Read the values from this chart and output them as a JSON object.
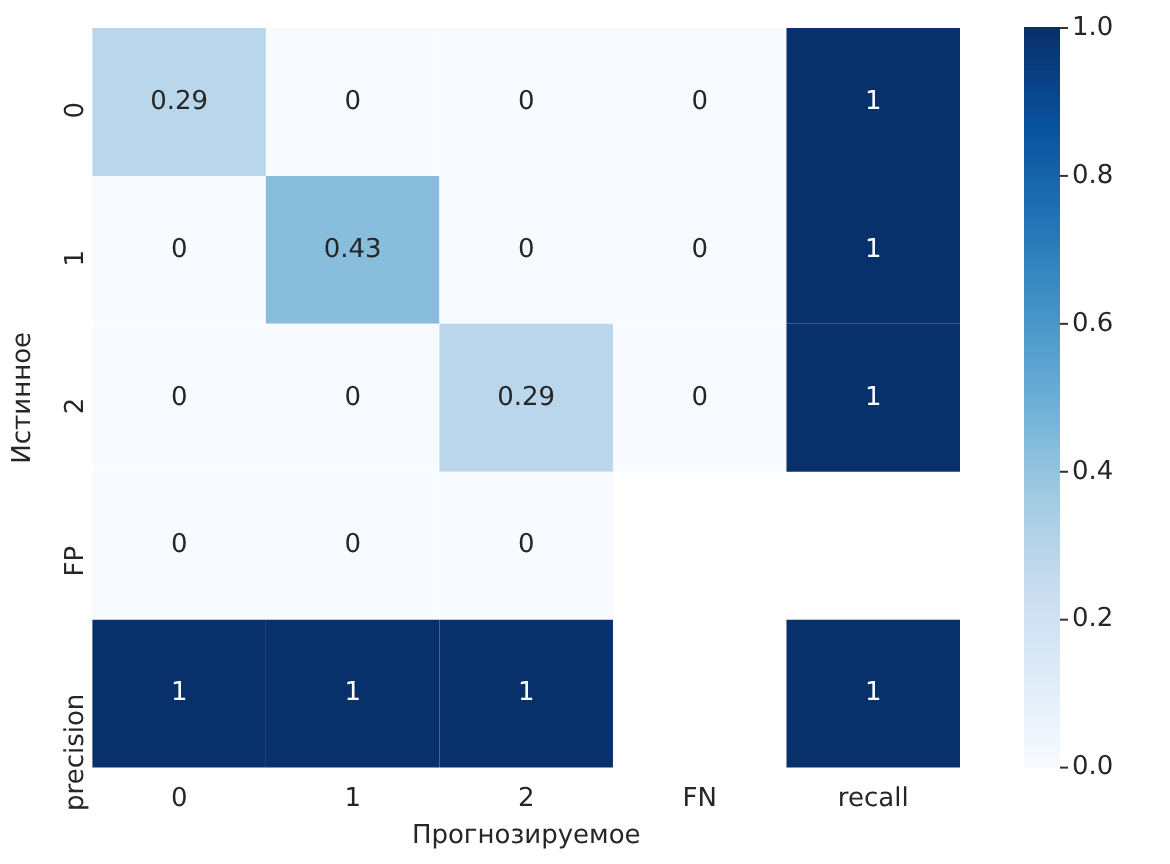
{
  "chart_data": {
    "type": "heatmap",
    "xlabel": "Прогнозируемое",
    "ylabel": "Истинное",
    "categories": [
      "0",
      "1",
      "2",
      "FN",
      "recall"
    ],
    "y_categories": [
      "0",
      "1",
      "2",
      "FP",
      "precision"
    ],
    "cells": [
      [
        0.29,
        0,
        0,
        0,
        1
      ],
      [
        0,
        0.43,
        0,
        0,
        1
      ],
      [
        0,
        0,
        0.29,
        0,
        1
      ],
      [
        0,
        0,
        0,
        null,
        null
      ],
      [
        1,
        1,
        1,
        null,
        1
      ]
    ],
    "data_labels": true,
    "clim": [
      0,
      1
    ],
    "cticks": [
      {
        "value": 0,
        "label": "0.0"
      },
      {
        "value": 0.2,
        "label": "0.2"
      },
      {
        "value": 0.4,
        "label": "0.4"
      },
      {
        "value": 0.6,
        "label": "0.6"
      },
      {
        "value": 0.8,
        "label": "0.8"
      },
      {
        "value": 1,
        "label": "1.0"
      }
    ]
  }
}
